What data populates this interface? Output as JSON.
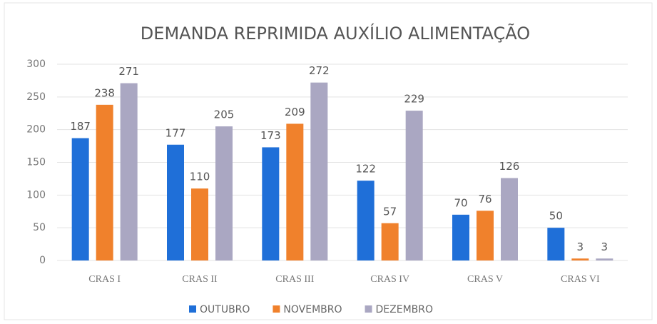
{
  "chart_data": {
    "type": "bar",
    "title": "DEMANDA REPRIMIDA AUXÍLIO ALIMENTAÇÃO",
    "categories": [
      "CRAS I",
      "CRAS II",
      "CRAS III",
      "CRAS IV",
      "CRAS V",
      "CRAS VI"
    ],
    "series": [
      {
        "name": "OUTUBRO",
        "color": "#1f6fd8",
        "values": [
          187,
          177,
          173,
          122,
          70,
          50
        ]
      },
      {
        "name": "NOVEMBRO",
        "color": "#f0812c",
        "values": [
          238,
          110,
          209,
          57,
          76,
          3
        ]
      },
      {
        "name": "DEZEMBRO",
        "color": "#aaa7c2",
        "values": [
          271,
          205,
          272,
          229,
          126,
          3
        ]
      }
    ],
    "ylim": [
      0,
      300
    ],
    "yticks": [
      0,
      50,
      100,
      150,
      200,
      250,
      300
    ],
    "grid": true,
    "legend": "bottom"
  }
}
